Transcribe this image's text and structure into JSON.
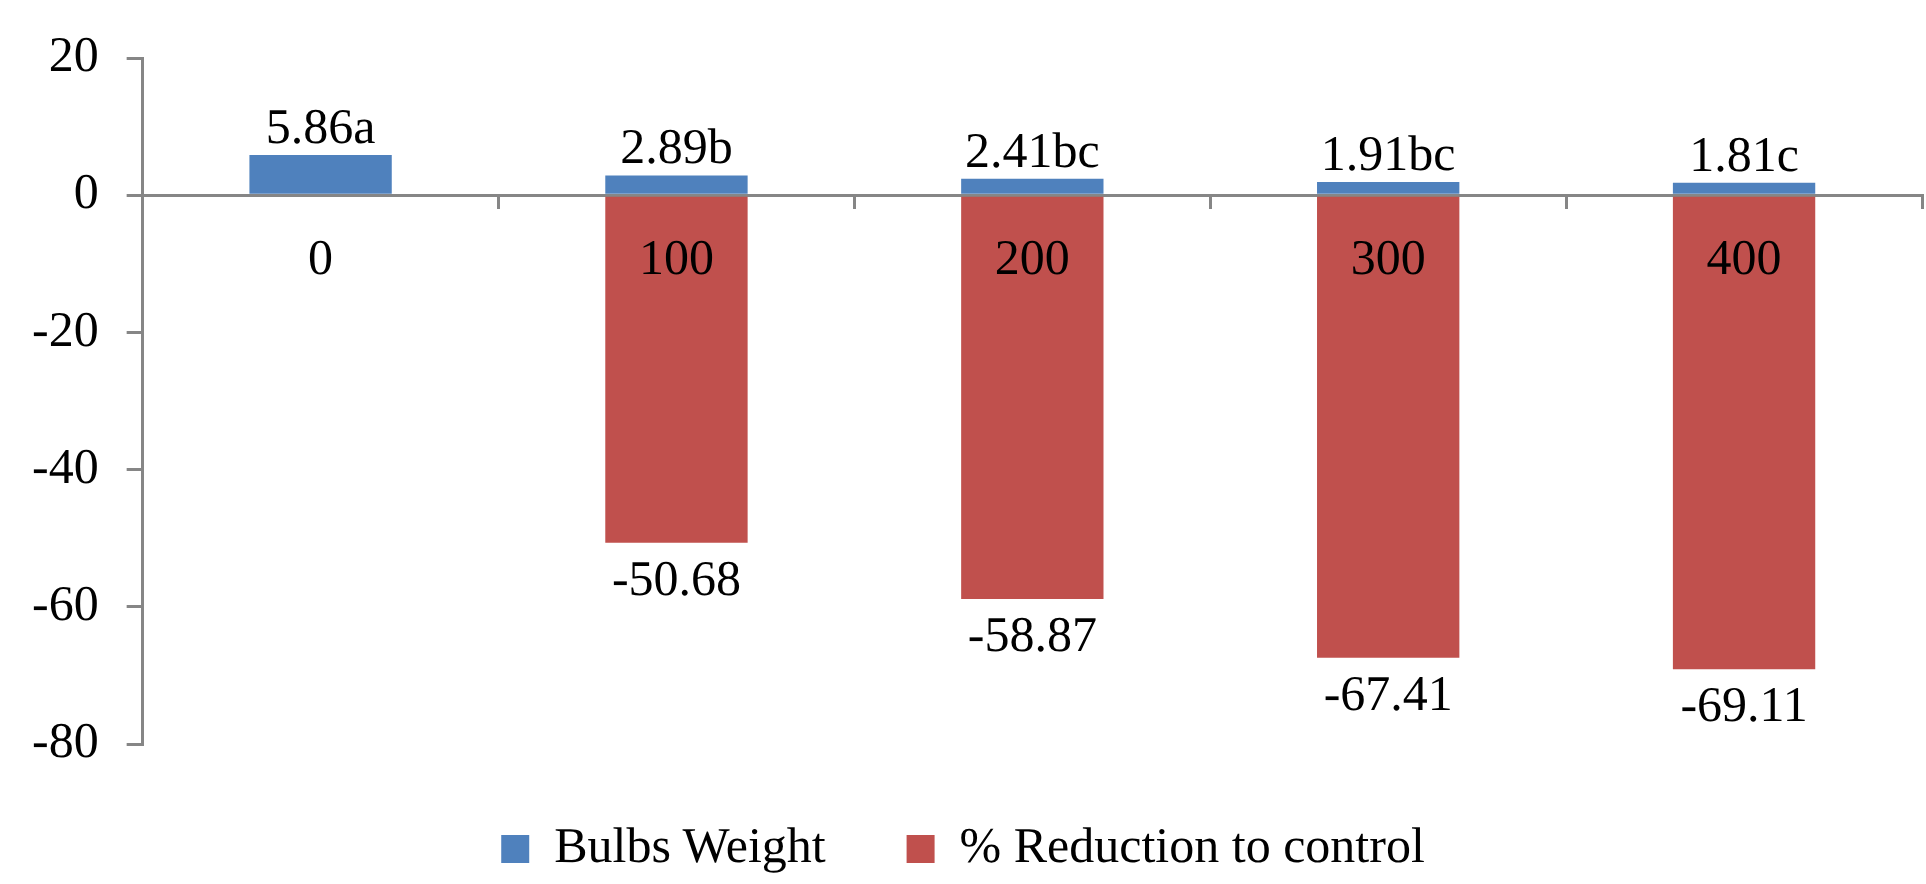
{
  "chart_data": {
    "type": "bar",
    "stacked": true,
    "categories": [
      "0",
      "100",
      "200",
      "300",
      "400"
    ],
    "series": [
      {
        "name": "Bulbs Weight",
        "color": "#4f81bd",
        "values": [
          5.86,
          2.89,
          2.41,
          1.91,
          1.81
        ],
        "value_labels": [
          "5.86a",
          "2.89b",
          "2.41bc",
          "1.91bc",
          "1.81c"
        ]
      },
      {
        "name": "% Reduction to control",
        "color": "#c0504d",
        "values": [
          null,
          -50.68,
          -58.87,
          -67.41,
          -69.11
        ],
        "value_labels": [
          null,
          "-50.68",
          "-58.87",
          "-67.41",
          "-69.11"
        ]
      }
    ],
    "ylim": [
      -80,
      20
    ],
    "yticks": [
      -80,
      -60,
      -40,
      -20,
      0,
      20
    ],
    "legend": "bottom"
  }
}
